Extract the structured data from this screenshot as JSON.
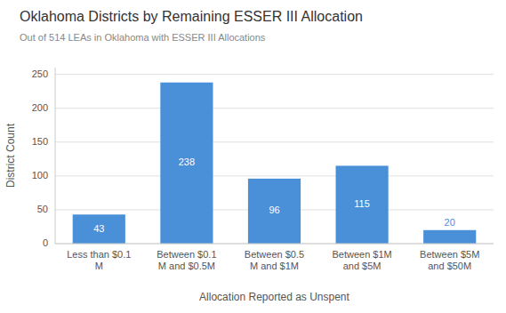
{
  "chart_data": {
    "type": "bar",
    "title": "Oklahoma Districts by Remaining ESSER III Allocation",
    "subtitle": "Out of 514 LEAs in Oklahoma with ESSER III Allocations",
    "categories": [
      "Less than $0.1\nM",
      "Between $0.1\nM and $0.5M",
      "Between $0.5\nM and $1M",
      "Between $1M\nand $5M",
      "Between $5M\nand $50M"
    ],
    "values": [
      43,
      238,
      96,
      115,
      20
    ],
    "color": "#4A90D9",
    "xlabel": "Allocation Reported as Unspent",
    "ylabel": "District Count",
    "ylim": [
      0,
      260
    ],
    "yticks": [
      0,
      50,
      100,
      150,
      200,
      250
    ],
    "grid": true,
    "data_labels": true
  }
}
